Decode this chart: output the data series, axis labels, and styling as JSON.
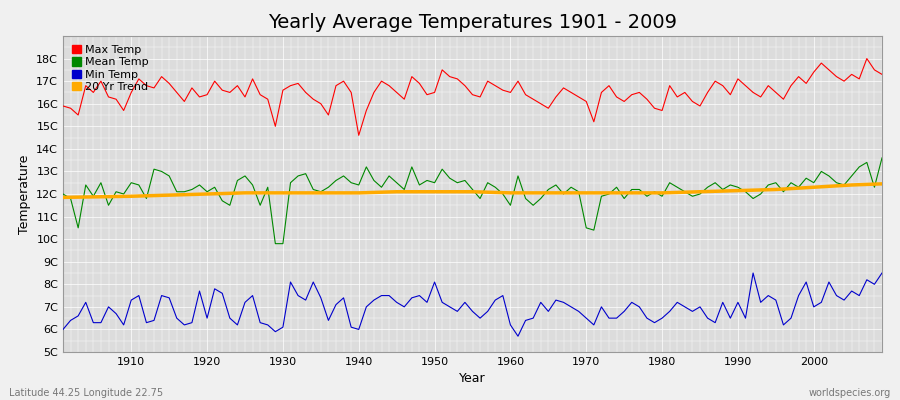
{
  "title": "Yearly Average Temperatures 1901 - 2009",
  "xlabel": "Year",
  "ylabel": "Temperature",
  "bottom_left": "Latitude 44.25 Longitude 22.75",
  "bottom_right": "worldspecies.org",
  "years": [
    1901,
    1902,
    1903,
    1904,
    1905,
    1906,
    1907,
    1908,
    1909,
    1910,
    1911,
    1912,
    1913,
    1914,
    1915,
    1916,
    1917,
    1918,
    1919,
    1920,
    1921,
    1922,
    1923,
    1924,
    1925,
    1926,
    1927,
    1928,
    1929,
    1930,
    1931,
    1932,
    1933,
    1934,
    1935,
    1936,
    1937,
    1938,
    1939,
    1940,
    1941,
    1942,
    1943,
    1944,
    1945,
    1946,
    1947,
    1948,
    1949,
    1950,
    1951,
    1952,
    1953,
    1954,
    1955,
    1956,
    1957,
    1958,
    1959,
    1960,
    1961,
    1962,
    1963,
    1964,
    1965,
    1966,
    1967,
    1968,
    1969,
    1970,
    1971,
    1972,
    1973,
    1974,
    1975,
    1976,
    1977,
    1978,
    1979,
    1980,
    1981,
    1982,
    1983,
    1984,
    1985,
    1986,
    1987,
    1988,
    1989,
    1990,
    1991,
    1992,
    1993,
    1994,
    1995,
    1996,
    1997,
    1998,
    1999,
    2000,
    2001,
    2002,
    2003,
    2004,
    2005,
    2006,
    2007,
    2008,
    2009
  ],
  "max_temp": [
    15.9,
    15.8,
    15.5,
    16.8,
    16.5,
    17.0,
    16.3,
    16.2,
    15.7,
    16.5,
    17.1,
    16.8,
    16.7,
    17.2,
    16.9,
    16.5,
    16.1,
    16.7,
    16.3,
    16.4,
    17.0,
    16.6,
    16.5,
    16.8,
    16.3,
    17.1,
    16.4,
    16.2,
    15.0,
    16.6,
    16.8,
    16.9,
    16.5,
    16.2,
    16.0,
    15.5,
    16.8,
    17.0,
    16.5,
    14.6,
    15.7,
    16.5,
    17.0,
    16.8,
    16.5,
    16.2,
    17.2,
    16.9,
    16.4,
    16.5,
    17.5,
    17.2,
    17.1,
    16.8,
    16.4,
    16.3,
    17.0,
    16.8,
    16.6,
    16.5,
    17.0,
    16.4,
    16.2,
    16.0,
    15.8,
    16.3,
    16.7,
    16.5,
    16.3,
    16.1,
    15.2,
    16.5,
    16.8,
    16.3,
    16.1,
    16.4,
    16.5,
    16.2,
    15.8,
    15.7,
    16.8,
    16.3,
    16.5,
    16.1,
    15.9,
    16.5,
    17.0,
    16.8,
    16.4,
    17.1,
    16.8,
    16.5,
    16.3,
    16.8,
    16.5,
    16.2,
    16.8,
    17.2,
    16.9,
    17.4,
    17.8,
    17.5,
    17.2,
    17.0,
    17.3,
    17.1,
    18.0,
    17.5,
    17.3
  ],
  "mean_temp": [
    12.0,
    11.8,
    10.5,
    12.4,
    11.9,
    12.5,
    11.5,
    12.1,
    12.0,
    12.5,
    12.4,
    11.8,
    13.1,
    13.0,
    12.8,
    12.1,
    12.1,
    12.2,
    12.4,
    12.1,
    12.3,
    11.7,
    11.5,
    12.6,
    12.8,
    12.4,
    11.5,
    12.3,
    9.8,
    9.8,
    12.5,
    12.8,
    12.9,
    12.2,
    12.1,
    12.3,
    12.6,
    12.8,
    12.5,
    12.4,
    13.2,
    12.6,
    12.3,
    12.8,
    12.5,
    12.2,
    13.2,
    12.4,
    12.6,
    12.5,
    13.1,
    12.7,
    12.5,
    12.6,
    12.2,
    11.8,
    12.5,
    12.3,
    12.0,
    11.5,
    12.8,
    11.8,
    11.5,
    11.8,
    12.2,
    12.4,
    12.0,
    12.3,
    12.1,
    10.5,
    10.4,
    11.9,
    12.0,
    12.3,
    11.8,
    12.2,
    12.2,
    11.9,
    12.1,
    11.9,
    12.5,
    12.3,
    12.1,
    11.9,
    12.0,
    12.3,
    12.5,
    12.2,
    12.4,
    12.3,
    12.1,
    11.8,
    12.0,
    12.4,
    12.5,
    12.1,
    12.5,
    12.3,
    12.7,
    12.5,
    13.0,
    12.8,
    12.5,
    12.4,
    12.8,
    13.2,
    13.4,
    12.3,
    13.6
  ],
  "min_temp": [
    6.0,
    6.4,
    6.6,
    7.2,
    6.3,
    6.3,
    7.0,
    6.7,
    6.2,
    7.3,
    7.5,
    6.3,
    6.4,
    7.5,
    7.4,
    6.5,
    6.2,
    6.3,
    7.7,
    6.5,
    7.8,
    7.6,
    6.5,
    6.2,
    7.2,
    7.5,
    6.3,
    6.2,
    5.9,
    6.1,
    8.1,
    7.5,
    7.3,
    8.1,
    7.4,
    6.4,
    7.1,
    7.4,
    6.1,
    6.0,
    7.0,
    7.3,
    7.5,
    7.5,
    7.2,
    7.0,
    7.4,
    7.5,
    7.2,
    8.1,
    7.2,
    7.0,
    6.8,
    7.2,
    6.8,
    6.5,
    6.8,
    7.3,
    7.5,
    6.2,
    5.7,
    6.4,
    6.5,
    7.2,
    6.8,
    7.3,
    7.2,
    7.0,
    6.8,
    6.5,
    6.2,
    7.0,
    6.5,
    6.5,
    6.8,
    7.2,
    7.0,
    6.5,
    6.3,
    6.5,
    6.8,
    7.2,
    7.0,
    6.8,
    7.0,
    6.5,
    6.3,
    7.2,
    6.5,
    7.2,
    6.5,
    8.5,
    7.2,
    7.5,
    7.3,
    6.2,
    6.5,
    7.5,
    8.1,
    7.0,
    7.2,
    8.1,
    7.5,
    7.3,
    7.7,
    7.5,
    8.2,
    8.0,
    8.5
  ],
  "trend_years": [
    1901,
    1910,
    1915,
    1920,
    1925,
    1930,
    1935,
    1940,
    1945,
    1950,
    1955,
    1960,
    1965,
    1970,
    1975,
    1980,
    1985,
    1990,
    1995,
    2000,
    2005,
    2009
  ],
  "trend_values": [
    11.85,
    11.9,
    11.95,
    12.0,
    12.05,
    12.05,
    12.05,
    12.05,
    12.1,
    12.1,
    12.1,
    12.05,
    12.05,
    12.05,
    12.05,
    12.05,
    12.1,
    12.15,
    12.2,
    12.3,
    12.4,
    12.45
  ],
  "bg_color": "#f0f0f0",
  "plot_bg": "#dcdcdc",
  "max_color": "#ff0000",
  "mean_color": "#008800",
  "min_color": "#0000cc",
  "trend_color": "#ffaa00",
  "ylim": [
    5,
    19
  ],
  "yticks": [
    5,
    6,
    7,
    8,
    9,
    10,
    11,
    12,
    13,
    14,
    15,
    16,
    17,
    18
  ],
  "ytick_labels": [
    "5C",
    "6C",
    "7C",
    "8C",
    "9C",
    "10C",
    "11C",
    "12C",
    "13C",
    "14C",
    "15C",
    "16C",
    "17C",
    "18C"
  ],
  "xlim": [
    1901,
    2009
  ],
  "title_fontsize": 14,
  "legend_fontsize": 8,
  "axis_fontsize": 9,
  "tick_fontsize": 8
}
